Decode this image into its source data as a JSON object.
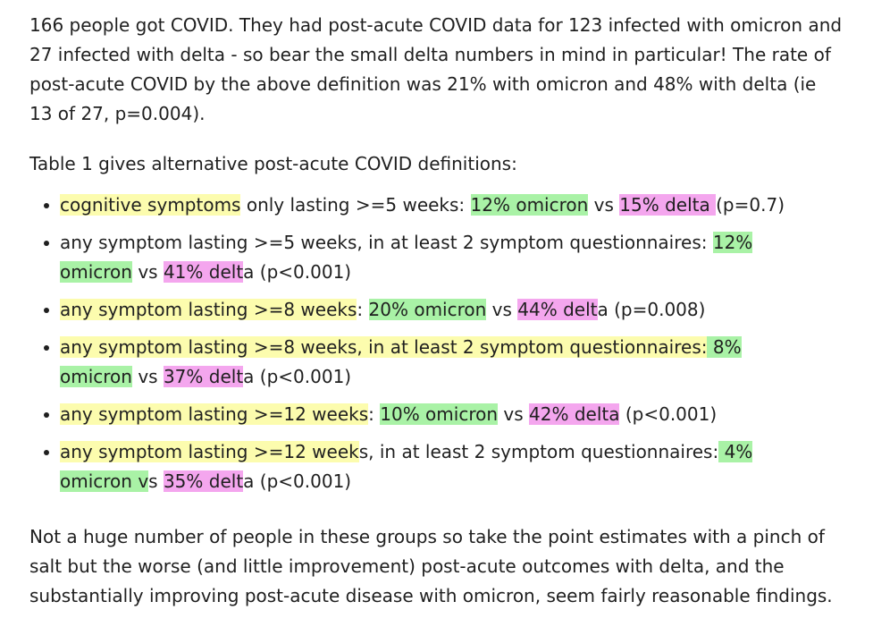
{
  "paragraph1": "166 people got COVID. They had post-acute COVID data for 123 infected with omicron and 27 infected with delta - so bear the small delta numbers in mind in particular! The rate of post-acute COVID by the above definition was 21% with omicron and 48% with delta (ie 13 of 27, p=0.004).",
  "paragraph2": "Table 1 gives alternative post-acute COVID definitions:",
  "bullets": [
    [
      {
        "text": "cognitive symptoms",
        "hl": "yellow"
      },
      {
        "text": " only lasting >=5 weeks: ",
        "hl": ""
      },
      {
        "text": "12% omicron",
        "hl": "green"
      },
      {
        "text": " vs ",
        "hl": ""
      },
      {
        "text": "15% delta ",
        "hl": "pink"
      },
      {
        "text": "(p=0.7)",
        "hl": ""
      }
    ],
    [
      {
        "text": "any symptom lasting >=5 weeks, in at least 2 symptom questionnaires: ",
        "hl": ""
      },
      {
        "text": "12% omicron",
        "hl": "green"
      },
      {
        "text": " vs ",
        "hl": ""
      },
      {
        "text": "41% delt",
        "hl": "pink"
      },
      {
        "text": "a (p<0.001)",
        "hl": ""
      }
    ],
    [
      {
        "text": "any symptom lasting >=8 weeks",
        "hl": "yellow"
      },
      {
        "text": ": ",
        "hl": ""
      },
      {
        "text": "20% omicron",
        "hl": "green"
      },
      {
        "text": " vs ",
        "hl": ""
      },
      {
        "text": "44% delt",
        "hl": "pink"
      },
      {
        "text": "a (p=0.008)",
        "hl": ""
      }
    ],
    [
      {
        "text": "any symptom lasting >=8 weeks, in at least 2 symptom questionnaires:",
        "hl": "yellow"
      },
      {
        "text": " 8% omicron",
        "hl": "green"
      },
      {
        "text": " vs ",
        "hl": ""
      },
      {
        "text": "37% delt",
        "hl": "pink"
      },
      {
        "text": "a (p<0.001)",
        "hl": ""
      }
    ],
    [
      {
        "text": "any symptom lasting >=12 weeks",
        "hl": "yellow"
      },
      {
        "text": ": ",
        "hl": ""
      },
      {
        "text": "10% omicron",
        "hl": "green"
      },
      {
        "text": " vs ",
        "hl": ""
      },
      {
        "text": "42% delta",
        "hl": "pink"
      },
      {
        "text": " (p<0.001)",
        "hl": ""
      }
    ],
    [
      {
        "text": "any symptom lasting >=12 week",
        "hl": "yellow"
      },
      {
        "text": "s, in at least 2 symptom questionnaires:",
        "hl": ""
      },
      {
        "text": " 4% omicron v",
        "hl": "green"
      },
      {
        "text": "s ",
        "hl": ""
      },
      {
        "text": "35% delt",
        "hl": "pink"
      },
      {
        "text": "a (p<0.001)",
        "hl": ""
      }
    ]
  ],
  "paragraph3": "Not a huge number of people in these groups so take the point estimates with a pinch of salt but the worse (and little improvement) post-acute outcomes with delta, and the substantially improving post-acute disease with omicron, seem fairly reasonable findings.",
  "colors": {
    "yellow": "#fcfcae",
    "green": "#a9f2a6",
    "pink": "#f4a6ee"
  }
}
